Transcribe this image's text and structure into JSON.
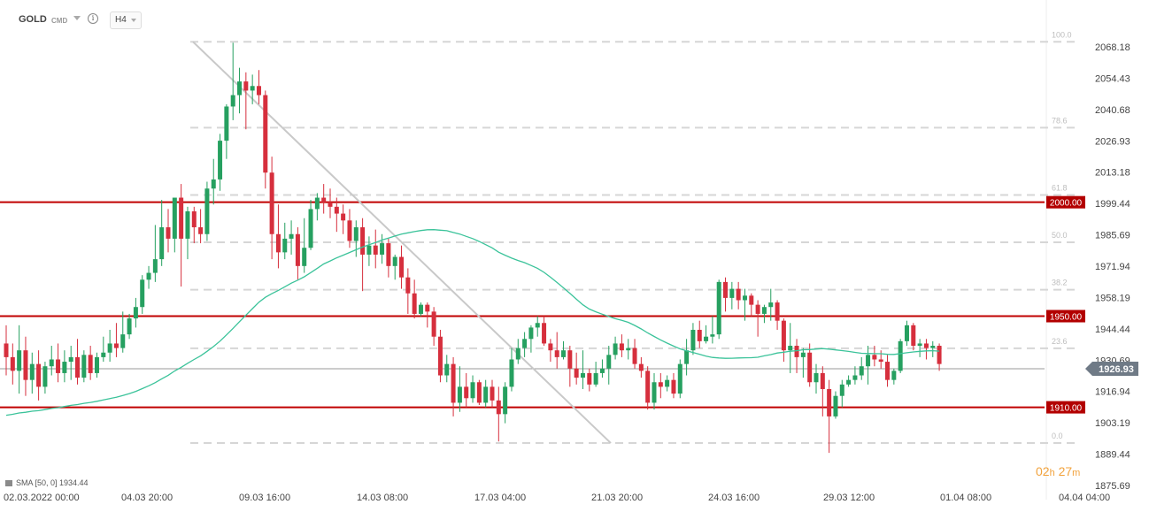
{
  "toolbar": {
    "symbol": "GOLD",
    "instrument_type": "CMD",
    "timeframe": "H4",
    "info_icon": "info-icon"
  },
  "indicator_legend": "SMA [50, 0] 1934.44",
  "countdown": {
    "hours": "02",
    "h": "h",
    "minutes": "27",
    "m": "m"
  },
  "colors": {
    "bull": "#26a060",
    "bear": "#d62f3d",
    "sma": "#3bc39a",
    "level_line": "#c00000",
    "trendline": "#c9c9c9",
    "fib_line": "#d6d6d6"
  },
  "chart_data": {
    "type": "candlestick",
    "title": "",
    "xlabel": "",
    "ylabel": "",
    "ylim": [
      1871.0,
      2078.0
    ],
    "y_ticks": [
      "2068.18",
      "2054.43",
      "2040.68",
      "2026.93",
      "2013.18",
      "1999.44",
      "1985.69",
      "1971.94",
      "1958.19",
      "1944.44",
      "1930.69",
      "1916.94",
      "1903.19",
      "1889.44",
      "1875.69"
    ],
    "x_ticks": [
      "02.03.2022  00:00",
      "04.03  20:00",
      "09.03  16:00",
      "14.03  08:00",
      "17.03  04:00",
      "21.03  20:00",
      "24.03  16:00",
      "29.03  12:00",
      "01.04  08:00",
      "04.04  04:00"
    ],
    "current_price": "1926.93",
    "horizontal_levels": [
      {
        "label": "2000.00",
        "value": 2000.0
      },
      {
        "label": "1950.00",
        "value": 1950.0
      },
      {
        "label": "1910.00",
        "value": 1910.0
      }
    ],
    "fibonacci": {
      "high": 2070.4,
      "low": 1894.3,
      "levels": [
        {
          "label": "100.0",
          "value": 2070.4
        },
        {
          "label": "78.6",
          "value": 2032.7
        },
        {
          "label": "61.8",
          "value": 2003.2
        },
        {
          "label": "50.0",
          "value": 1982.4
        },
        {
          "label": "38.2",
          "value": 1961.6
        },
        {
          "label": "23.6",
          "value": 1935.9
        },
        {
          "label": "0.0",
          "value": 1894.3
        }
      ]
    },
    "trendline": {
      "from": 2070.4,
      "to": 1894.3
    },
    "sma_label": "SMA [50, 0]",
    "sma_last": 1934.44,
    "candles": [
      {
        "o": 1938,
        "h": 1946,
        "c": 1932,
        "l": 1924
      },
      {
        "o": 1932,
        "h": 1938,
        "c": 1926,
        "l": 1920
      },
      {
        "o": 1926,
        "h": 1946,
        "c": 1935,
        "l": 1916
      },
      {
        "o": 1935,
        "h": 1941,
        "c": 1922,
        "l": 1915
      },
      {
        "o": 1922,
        "h": 1934,
        "c": 1929,
        "l": 1916
      },
      {
        "o": 1929,
        "h": 1935,
        "c": 1919,
        "l": 1913
      },
      {
        "o": 1919,
        "h": 1930,
        "c": 1928,
        "l": 1916
      },
      {
        "o": 1928,
        "h": 1937,
        "c": 1931,
        "l": 1924
      },
      {
        "o": 1931,
        "h": 1938,
        "c": 1925,
        "l": 1921
      },
      {
        "o": 1925,
        "h": 1935,
        "c": 1930,
        "l": 1921
      },
      {
        "o": 1930,
        "h": 1937,
        "c": 1932,
        "l": 1922
      },
      {
        "o": 1932,
        "h": 1940,
        "c": 1923,
        "l": 1920
      },
      {
        "o": 1923,
        "h": 1935,
        "c": 1933,
        "l": 1921
      },
      {
        "o": 1933,
        "h": 1937,
        "c": 1925,
        "l": 1922
      },
      {
        "o": 1925,
        "h": 1934,
        "c": 1932,
        "l": 1923
      },
      {
        "o": 1932,
        "h": 1941,
        "c": 1934,
        "l": 1930
      },
      {
        "o": 1934,
        "h": 1944,
        "c": 1938,
        "l": 1930
      },
      {
        "o": 1938,
        "h": 1947,
        "c": 1936,
        "l": 1932
      },
      {
        "o": 1936,
        "h": 1952,
        "c": 1942,
        "l": 1934
      },
      {
        "o": 1942,
        "h": 1951,
        "c": 1949,
        "l": 1940
      },
      {
        "o": 1949,
        "h": 1958,
        "c": 1954,
        "l": 1945
      },
      {
        "o": 1954,
        "h": 1968,
        "c": 1966,
        "l": 1951
      },
      {
        "o": 1966,
        "h": 1972,
        "c": 1969,
        "l": 1962
      },
      {
        "o": 1969,
        "h": 1990,
        "c": 1975,
        "l": 1965
      },
      {
        "o": 1975,
        "h": 2001,
        "c": 1989,
        "l": 1972
      },
      {
        "o": 1989,
        "h": 1997,
        "c": 1984,
        "l": 1978
      },
      {
        "o": 1984,
        "h": 2002,
        "c": 2002,
        "l": 1978
      },
      {
        "o": 2002,
        "h": 2008,
        "c": 1984,
        "l": 1963
      },
      {
        "o": 1984,
        "h": 1998,
        "c": 1996,
        "l": 1975
      },
      {
        "o": 1996,
        "h": 1998,
        "c": 1989,
        "l": 1982
      },
      {
        "o": 1989,
        "h": 1997,
        "c": 1986,
        "l": 1982
      },
      {
        "o": 1986,
        "h": 2009,
        "c": 2006,
        "l": 1983
      },
      {
        "o": 2006,
        "h": 2019,
        "c": 2010,
        "l": 1999
      },
      {
        "o": 2010,
        "h": 2030,
        "c": 2027,
        "l": 2005
      },
      {
        "o": 2027,
        "h": 2043,
        "c": 2042,
        "l": 2019
      },
      {
        "o": 2042,
        "h": 2070,
        "c": 2047,
        "l": 2036
      },
      {
        "o": 2047,
        "h": 2059,
        "c": 2053,
        "l": 2039
      },
      {
        "o": 2053,
        "h": 2057,
        "c": 2049,
        "l": 2032
      },
      {
        "o": 2049,
        "h": 2056,
        "c": 2051,
        "l": 2043
      },
      {
        "o": 2051,
        "h": 2058,
        "c": 2047,
        "l": 2043
      },
      {
        "o": 2047,
        "h": 2049,
        "c": 2013,
        "l": 2006
      },
      {
        "o": 2013,
        "h": 2020,
        "c": 1986,
        "l": 1975
      },
      {
        "o": 1986,
        "h": 1999,
        "c": 1978,
        "l": 1971
      },
      {
        "o": 1978,
        "h": 1991,
        "c": 1984,
        "l": 1975
      },
      {
        "o": 1984,
        "h": 1992,
        "c": 1986,
        "l": 1977
      },
      {
        "o": 1986,
        "h": 1989,
        "c": 1972,
        "l": 1966
      },
      {
        "o": 1972,
        "h": 1993,
        "c": 1980,
        "l": 1969
      },
      {
        "o": 1980,
        "h": 2001,
        "c": 1997,
        "l": 1979
      },
      {
        "o": 1997,
        "h": 2004,
        "c": 2002,
        "l": 1992
      },
      {
        "o": 2002,
        "h": 2008,
        "c": 2000,
        "l": 1995
      },
      {
        "o": 2000,
        "h": 2006,
        "c": 1998,
        "l": 1993
      },
      {
        "o": 1998,
        "h": 2002,
        "c": 1995,
        "l": 1987
      },
      {
        "o": 1995,
        "h": 1999,
        "c": 1992,
        "l": 1986
      },
      {
        "o": 1992,
        "h": 1997,
        "c": 1983,
        "l": 1980
      },
      {
        "o": 1983,
        "h": 1992,
        "c": 1989,
        "l": 1976
      },
      {
        "o": 1989,
        "h": 1993,
        "c": 1977,
        "l": 1961
      },
      {
        "o": 1977,
        "h": 1985,
        "c": 1981,
        "l": 1972
      },
      {
        "o": 1981,
        "h": 1988,
        "c": 1977,
        "l": 1971
      },
      {
        "o": 1977,
        "h": 1986,
        "c": 1982,
        "l": 1973
      },
      {
        "o": 1982,
        "h": 1984,
        "c": 1972,
        "l": 1967
      },
      {
        "o": 1972,
        "h": 1977,
        "c": 1976,
        "l": 1966
      },
      {
        "o": 1976,
        "h": 1981,
        "c": 1967,
        "l": 1962
      },
      {
        "o": 1967,
        "h": 1971,
        "c": 1960,
        "l": 1951
      },
      {
        "o": 1960,
        "h": 1966,
        "c": 1951,
        "l": 1949
      },
      {
        "o": 1951,
        "h": 1956,
        "c": 1955,
        "l": 1950
      },
      {
        "o": 1955,
        "h": 1956,
        "c": 1952,
        "l": 1945
      },
      {
        "o": 1952,
        "h": 1954,
        "c": 1941,
        "l": 1937
      },
      {
        "o": 1941,
        "h": 1944,
        "c": 1924,
        "l": 1921
      },
      {
        "o": 1924,
        "h": 1933,
        "c": 1929,
        "l": 1921
      },
      {
        "o": 1929,
        "h": 1932,
        "c": 1912,
        "l": 1906
      },
      {
        "o": 1912,
        "h": 1928,
        "c": 1919,
        "l": 1908
      },
      {
        "o": 1919,
        "h": 1925,
        "c": 1914,
        "l": 1910
      },
      {
        "o": 1914,
        "h": 1924,
        "c": 1921,
        "l": 1912
      },
      {
        "o": 1921,
        "h": 1922,
        "c": 1912,
        "l": 1911
      },
      {
        "o": 1912,
        "h": 1922,
        "c": 1919,
        "l": 1910
      },
      {
        "o": 1919,
        "h": 1922,
        "c": 1913,
        "l": 1910
      },
      {
        "o": 1913,
        "h": 1919,
        "c": 1907,
        "l": 1895
      },
      {
        "o": 1907,
        "h": 1921,
        "c": 1919,
        "l": 1903
      },
      {
        "o": 1919,
        "h": 1936,
        "c": 1931,
        "l": 1917
      },
      {
        "o": 1931,
        "h": 1940,
        "c": 1936,
        "l": 1929
      },
      {
        "o": 1936,
        "h": 1943,
        "c": 1940,
        "l": 1932
      },
      {
        "o": 1940,
        "h": 1946,
        "c": 1945,
        "l": 1934
      },
      {
        "o": 1945,
        "h": 1950,
        "c": 1947,
        "l": 1941
      },
      {
        "o": 1947,
        "h": 1950,
        "c": 1938,
        "l": 1937
      },
      {
        "o": 1938,
        "h": 1940,
        "c": 1935,
        "l": 1930
      },
      {
        "o": 1935,
        "h": 1943,
        "c": 1932,
        "l": 1927
      },
      {
        "o": 1932,
        "h": 1939,
        "c": 1935,
        "l": 1931
      },
      {
        "o": 1935,
        "h": 1937,
        "c": 1927,
        "l": 1919
      },
      {
        "o": 1927,
        "h": 1934,
        "c": 1923,
        "l": 1920
      },
      {
        "o": 1923,
        "h": 1935,
        "c": 1925,
        "l": 1918
      },
      {
        "o": 1925,
        "h": 1927,
        "c": 1920,
        "l": 1917
      },
      {
        "o": 1920,
        "h": 1930,
        "c": 1925,
        "l": 1919
      },
      {
        "o": 1925,
        "h": 1931,
        "c": 1927,
        "l": 1923
      },
      {
        "o": 1927,
        "h": 1937,
        "c": 1933,
        "l": 1920
      },
      {
        "o": 1933,
        "h": 1941,
        "c": 1938,
        "l": 1931
      },
      {
        "o": 1938,
        "h": 1942,
        "c": 1935,
        "l": 1932
      },
      {
        "o": 1935,
        "h": 1940,
        "c": 1936,
        "l": 1931
      },
      {
        "o": 1936,
        "h": 1940,
        "c": 1929,
        "l": 1927
      },
      {
        "o": 1929,
        "h": 1932,
        "c": 1926,
        "l": 1923
      },
      {
        "o": 1926,
        "h": 1928,
        "c": 1912,
        "l": 1909
      },
      {
        "o": 1912,
        "h": 1925,
        "c": 1921,
        "l": 1909
      },
      {
        "o": 1921,
        "h": 1925,
        "c": 1919,
        "l": 1914
      },
      {
        "o": 1919,
        "h": 1924,
        "c": 1922,
        "l": 1917
      },
      {
        "o": 1922,
        "h": 1925,
        "c": 1916,
        "l": 1914
      },
      {
        "o": 1916,
        "h": 1931,
        "c": 1929,
        "l": 1914
      },
      {
        "o": 1929,
        "h": 1940,
        "c": 1935,
        "l": 1924
      },
      {
        "o": 1935,
        "h": 1947,
        "c": 1944,
        "l": 1933
      },
      {
        "o": 1944,
        "h": 1948,
        "c": 1939,
        "l": 1936
      },
      {
        "o": 1939,
        "h": 1946,
        "c": 1941,
        "l": 1938
      },
      {
        "o": 1941,
        "h": 1950,
        "c": 1942,
        "l": 1938
      },
      {
        "o": 1942,
        "h": 1966,
        "c": 1965,
        "l": 1940
      },
      {
        "o": 1965,
        "h": 1967,
        "c": 1958,
        "l": 1952
      },
      {
        "o": 1958,
        "h": 1965,
        "c": 1962,
        "l": 1953
      },
      {
        "o": 1962,
        "h": 1965,
        "c": 1957,
        "l": 1953
      },
      {
        "o": 1957,
        "h": 1962,
        "c": 1959,
        "l": 1948
      },
      {
        "o": 1959,
        "h": 1960,
        "c": 1955,
        "l": 1950
      },
      {
        "o": 1955,
        "h": 1957,
        "c": 1951,
        "l": 1941
      },
      {
        "o": 1951,
        "h": 1955,
        "c": 1954,
        "l": 1947
      },
      {
        "o": 1954,
        "h": 1962,
        "c": 1956,
        "l": 1948
      },
      {
        "o": 1956,
        "h": 1957,
        "c": 1948,
        "l": 1944
      },
      {
        "o": 1948,
        "h": 1949,
        "c": 1935,
        "l": 1930
      },
      {
        "o": 1935,
        "h": 1947,
        "c": 1937,
        "l": 1925
      },
      {
        "o": 1937,
        "h": 1940,
        "c": 1932,
        "l": 1925
      },
      {
        "o": 1932,
        "h": 1936,
        "c": 1934,
        "l": 1923
      },
      {
        "o": 1934,
        "h": 1938,
        "c": 1921,
        "l": 1919
      },
      {
        "o": 1921,
        "h": 1929,
        "c": 1925,
        "l": 1916
      },
      {
        "o": 1925,
        "h": 1928,
        "c": 1918,
        "l": 1906
      },
      {
        "o": 1918,
        "h": 1922,
        "c": 1906,
        "l": 1890
      },
      {
        "o": 1906,
        "h": 1917,
        "c": 1915,
        "l": 1905
      },
      {
        "o": 1915,
        "h": 1922,
        "c": 1920,
        "l": 1910
      },
      {
        "o": 1920,
        "h": 1924,
        "c": 1922,
        "l": 1919
      },
      {
        "o": 1922,
        "h": 1928,
        "c": 1924,
        "l": 1920
      },
      {
        "o": 1924,
        "h": 1932,
        "c": 1928,
        "l": 1922
      },
      {
        "o": 1928,
        "h": 1937,
        "c": 1933,
        "l": 1920
      },
      {
        "o": 1933,
        "h": 1937,
        "c": 1931,
        "l": 1928
      },
      {
        "o": 1931,
        "h": 1935,
        "c": 1930,
        "l": 1927
      },
      {
        "o": 1930,
        "h": 1933,
        "c": 1922,
        "l": 1919
      },
      {
        "o": 1922,
        "h": 1927,
        "c": 1926,
        "l": 1920
      },
      {
        "o": 1926,
        "h": 1940,
        "c": 1939,
        "l": 1925
      },
      {
        "o": 1939,
        "h": 1948,
        "c": 1946,
        "l": 1937
      },
      {
        "o": 1946,
        "h": 1947,
        "c": 1937,
        "l": 1935
      },
      {
        "o": 1937,
        "h": 1940,
        "c": 1938,
        "l": 1932
      },
      {
        "o": 1938,
        "h": 1940,
        "c": 1936,
        "l": 1931
      },
      {
        "o": 1936,
        "h": 1939,
        "c": 1937,
        "l": 1932
      },
      {
        "o": 1937,
        "h": 1938,
        "c": 1929,
        "l": 1926
      }
    ]
  }
}
